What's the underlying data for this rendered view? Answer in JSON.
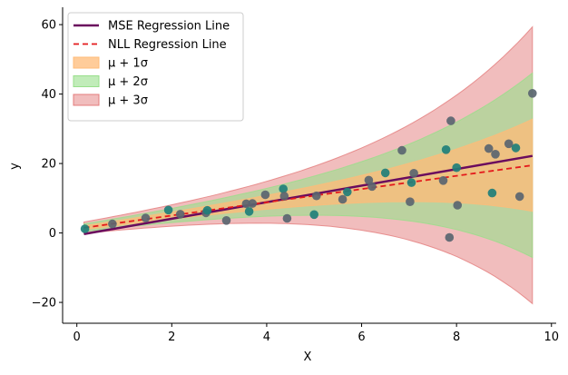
{
  "chart_data": {
    "type": "scatter",
    "xlabel": "X",
    "ylabel": "y",
    "xlim": [
      -0.3,
      10.1
    ],
    "ylim": [
      -26,
      65
    ],
    "xticks": [
      0,
      2,
      4,
      6,
      8,
      10
    ],
    "yticks": [
      -20,
      0,
      20,
      40,
      60
    ],
    "xtick_labels": [
      "0",
      "2",
      "4",
      "6",
      "8",
      "10"
    ],
    "ytick_labels": [
      "−20",
      "0",
      "20",
      "40",
      "60"
    ],
    "grid": false,
    "legend_position": "upper-left",
    "legend": [
      {
        "key": "mse",
        "label": "MSE Regression Line",
        "kind": "line",
        "color": "#6a0b5e"
      },
      {
        "key": "nll",
        "label": "NLL Regression Line",
        "kind": "dashed",
        "color": "#e41a1c"
      },
      {
        "key": "band1",
        "label": "μ + 1σ",
        "kind": "patch",
        "color": "#ffbb78"
      },
      {
        "key": "band2",
        "label": "μ + 2σ",
        "kind": "patch",
        "color": "#98df8a"
      },
      {
        "key": "band3",
        "label": "μ + 3σ",
        "kind": "patch",
        "color": "#e47c7c"
      }
    ],
    "mse_line": {
      "x": [
        0.15,
        9.6
      ],
      "y": [
        -0.3,
        22.2
      ]
    },
    "nll_line": {
      "x": [
        0.15,
        9.6
      ],
      "y": [
        1.5,
        19.5
      ]
    },
    "sigma_model": {
      "x0": 0.15,
      "sigma0": 0.55,
      "growth": 0.337
    },
    "points": {
      "color_low": "#1f7f7a",
      "color_high": "#5a6570",
      "x": [
        0.17,
        0.75,
        1.45,
        1.93,
        2.18,
        2.72,
        2.75,
        3.15,
        3.57,
        3.63,
        3.7,
        3.97,
        4.35,
        4.37,
        4.43,
        5.0,
        5.05,
        5.6,
        5.7,
        6.15,
        6.22,
        6.5,
        6.85,
        7.02,
        7.05,
        7.1,
        7.72,
        7.78,
        7.85,
        7.88,
        8.0,
        8.02,
        8.68,
        8.75,
        8.82,
        9.1,
        9.25,
        9.33,
        9.6
      ],
      "y": [
        1.2,
        2.6,
        4.3,
        6.6,
        5.4,
        5.8,
        6.5,
        3.6,
        8.4,
        6.2,
        8.5,
        11.0,
        12.7,
        10.6,
        4.2,
        5.3,
        10.7,
        9.7,
        11.8,
        15.2,
        13.4,
        17.3,
        23.8,
        9.0,
        14.5,
        17.2,
        15.1,
        24.0,
        -1.3,
        32.3,
        18.8,
        8.0,
        24.3,
        11.5,
        22.7,
        25.7,
        24.5,
        10.5,
        40.2
      ]
    }
  }
}
